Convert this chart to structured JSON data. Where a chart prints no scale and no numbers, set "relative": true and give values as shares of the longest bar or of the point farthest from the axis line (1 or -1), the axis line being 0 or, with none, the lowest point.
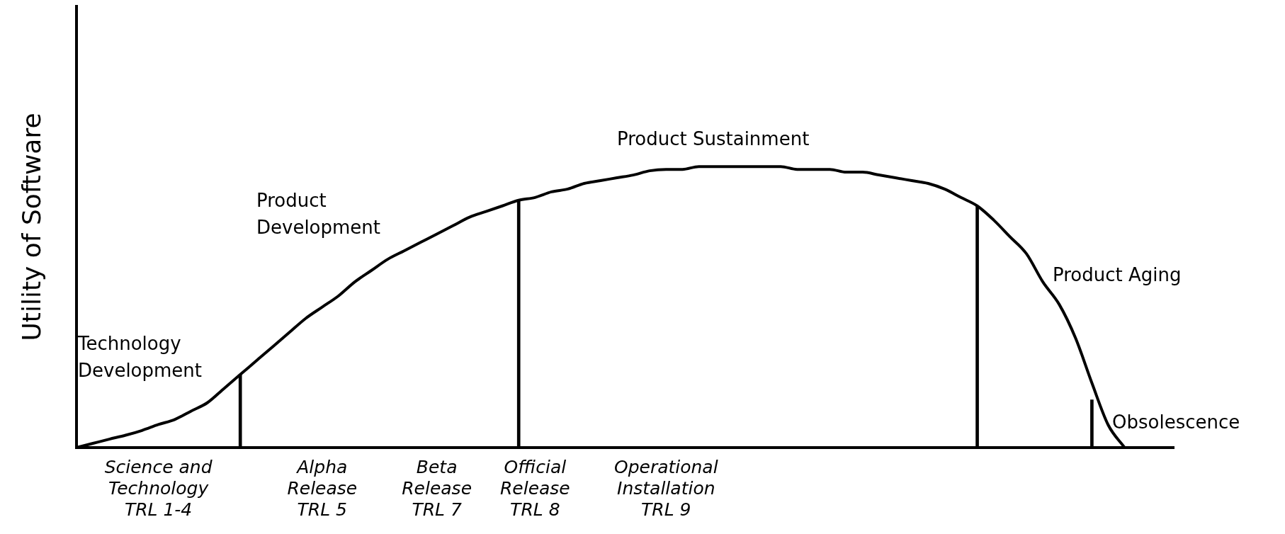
{
  "chart_data": {
    "type": "line",
    "relative": true,
    "ylabel": "Utility of Software",
    "categories": [
      null,
      null,
      null,
      null,
      null,
      "Science and\nTechnology\nTRL 1-4",
      null,
      null,
      null,
      null,
      null,
      null,
      null,
      null,
      null,
      "Alpha\nRelease\nTRL 5",
      null,
      null,
      null,
      null,
      null,
      null,
      "Beta\nRelease\nTRL 7",
      null,
      null,
      null,
      null,
      null,
      "Official\nRelease\nTRL 8",
      null,
      null,
      null,
      null,
      null,
      null,
      null,
      "Operational\nInstallation\nTRL 9",
      null,
      null,
      null,
      null,
      null,
      null,
      null,
      null,
      null,
      null,
      null,
      null,
      null,
      null,
      null,
      null,
      null,
      null,
      null,
      null,
      null,
      null,
      null,
      null,
      null,
      null,
      null,
      null,
      null,
      null,
      null
    ],
    "series": [
      {
        "color": "#000000",
        "values": [
          0,
          0.015,
          0.03,
          0.044,
          0.061,
          0.082,
          0.1,
          0.13,
          0.16,
          0.21,
          0.26,
          0.31,
          0.36,
          0.41,
          0.46,
          0.5,
          0.54,
          0.59,
          0.63,
          0.67,
          0.7,
          0.73,
          0.76,
          0.79,
          0.82,
          0.84,
          0.86,
          0.88,
          0.89,
          0.91,
          0.92,
          0.94,
          0.95,
          0.96,
          0.97,
          0.985,
          0.99,
          0.99,
          1,
          1,
          1,
          1,
          1,
          1,
          0.99,
          0.99,
          0.99,
          0.98,
          0.98,
          0.97,
          0.96,
          0.95,
          0.94,
          0.92,
          0.89,
          0.86,
          0.81,
          0.75,
          0.69,
          0.59,
          0.51,
          0.39,
          0.23,
          0.08,
          0,
          null,
          null,
          null
        ]
      },
      {
        "type": "bar",
        "color": "#000000",
        "values": [
          null,
          null,
          null,
          null,
          null,
          null,
          null,
          null,
          null,
          null,
          0.26,
          null,
          null,
          null,
          null,
          null,
          null,
          null,
          null,
          null,
          null,
          null,
          null,
          null,
          null,
          null,
          null,
          0.88,
          null,
          null,
          null,
          null,
          null,
          null,
          null,
          null,
          null,
          null,
          null,
          null,
          null,
          null,
          null,
          null,
          null,
          null,
          null,
          null,
          null,
          null,
          null,
          null,
          null,
          null,
          null,
          0.86,
          null,
          null,
          null,
          null,
          null,
          null,
          0.17,
          null,
          null,
          null,
          null,
          null
        ]
      }
    ],
    "annotations": [
      "Technology\nDevelopment",
      "Product\nDevelopment",
      "Product Sustainment",
      "Product Aging",
      "Obsolescence"
    ],
    "grid": false,
    "legend": false,
    "marker": "none",
    "line_style": "solid"
  }
}
